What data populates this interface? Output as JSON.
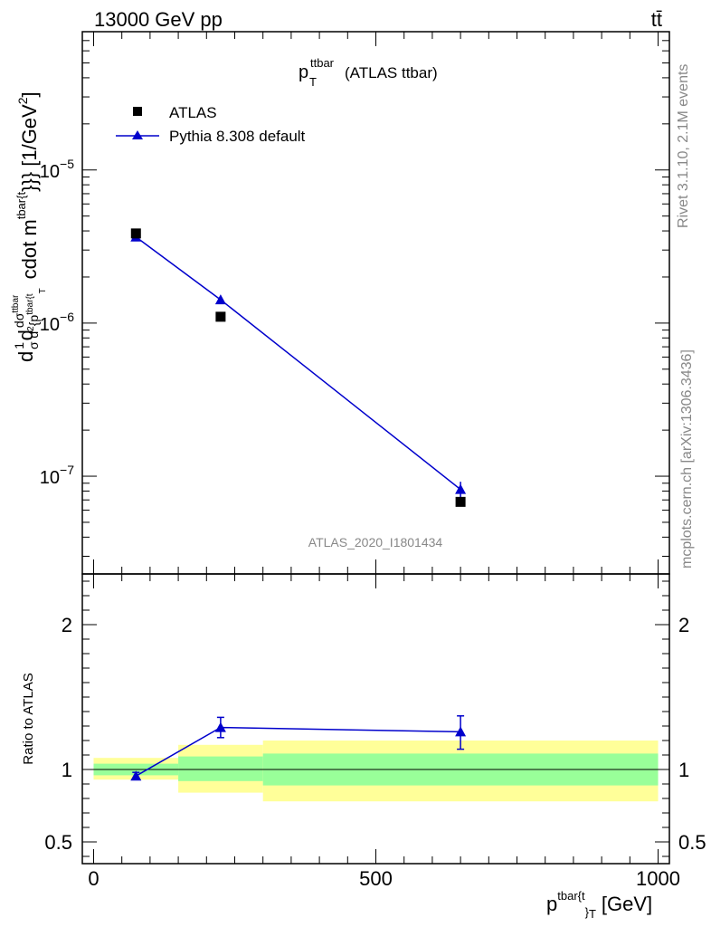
{
  "header": {
    "left": "13000 GeV pp",
    "right": "tt̄"
  },
  "side_labels": {
    "rivet": "Rivet 3.1.10,  2.1M events",
    "mcplots": "mcplots.cern.ch [arXiv:1306.3436]"
  },
  "chart_data": [
    {
      "type": "line",
      "panel": "main",
      "title_main": "p",
      "title_sup": "ttbar",
      "title_sub": "T",
      "title_suffix": "(ATLAS ttbar)",
      "ylabel_main": "d",
      "ylabel_frac_num": "1",
      "ylabel_frac_den": "σ",
      "ylabel_d2": "d",
      "ylabel_num": "d",
      "ylabel_sigma": "σ",
      "ylabel_sigma_sup": "ttbar",
      "ylabel_den": "d",
      "ylabel_den_sup": "2",
      "ylabel_den_p": "{p",
      "ylabel_den_sup2": "tbar{t",
      "ylabel_den_sub": "T",
      "ylabel_rest": "cdot m",
      "ylabel_rest_sup": "tbar{t",
      "ylabel_unit": "}}} [1/GeV",
      "ylabel_unit_sup": "2",
      "ylabel_unit_end": "]",
      "yscale": "log",
      "ylim": [
        2.3e-08,
        8e-05
      ],
      "xlim": [
        -20,
        1020
      ],
      "ytick_labels": [
        {
          "base": "10",
          "exp": "−5",
          "value": 1e-05
        },
        {
          "base": "10",
          "exp": "−6",
          "value": 1e-06
        },
        {
          "base": "10",
          "exp": "−7",
          "value": 1e-07
        }
      ],
      "watermark": "ATLAS_2020_I1801434",
      "legend_position": "top-left",
      "series": [
        {
          "name": "ATLAS",
          "marker": "square",
          "color": "#000000",
          "x": [
            75,
            225,
            650
          ],
          "y": [
            3.85e-06,
            1.1e-06,
            6.8e-08
          ]
        },
        {
          "name": "Pythia 8.308 default",
          "marker": "triangle",
          "color": "#0000cc",
          "x": [
            75,
            225,
            650
          ],
          "y": [
            3.65e-06,
            1.42e-06,
            8.2e-08
          ],
          "yerr_low": [
            3.55e-06,
            1.35e-06,
            7.3e-08
          ],
          "yerr_high": [
            3.75e-06,
            1.5e-06,
            9.2e-08
          ]
        }
      ]
    },
    {
      "type": "line",
      "panel": "ratio",
      "ylabel": "Ratio to ATLAS",
      "xlabel_main": "p",
      "xlabel_sup": "tbar{t",
      "xlabel_sub": "}",
      "xlabel_sub2": "T",
      "xlabel_unit": "[GeV]",
      "ylim": [
        0.35,
        2.35
      ],
      "xlim": [
        -20,
        1020
      ],
      "yticks": [
        0.5,
        1,
        2
      ],
      "ytick_labels": [
        "0.5",
        "1",
        "2"
      ],
      "xticks": [
        0,
        500,
        1000
      ],
      "xtick_labels": [
        "0",
        "500",
        "1000"
      ],
      "bands": [
        {
          "x0": 0,
          "x1": 150,
          "yellow": [
            0.93,
            1.08
          ],
          "green": [
            0.96,
            1.04
          ]
        },
        {
          "x0": 150,
          "x1": 300,
          "yellow": [
            0.84,
            1.17
          ],
          "green": [
            0.92,
            1.09
          ]
        },
        {
          "x0": 300,
          "x1": 1000,
          "yellow": [
            0.78,
            1.2
          ],
          "green": [
            0.89,
            1.11
          ]
        }
      ],
      "band_colors": {
        "yellow": "#ffff99",
        "green": "#99ff99"
      },
      "series": [
        {
          "name": "Pythia 8.308 default",
          "color": "#0000cc",
          "x": [
            75,
            225,
            650
          ],
          "y": [
            0.955,
            1.29,
            1.26
          ],
          "yerr_low": [
            0.93,
            1.22,
            1.14
          ],
          "yerr_high": [
            0.98,
            1.36,
            1.37
          ]
        }
      ]
    }
  ]
}
